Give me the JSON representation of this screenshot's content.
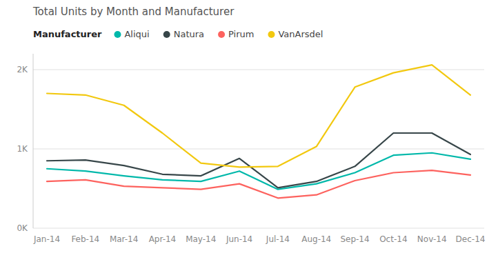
{
  "chart_data": {
    "type": "line",
    "title": "Total Units by Month and Manufacturer",
    "legend_title": "Manufacturer",
    "legend": "top",
    "categories": [
      "Jan-14",
      "Feb-14",
      "Mar-14",
      "Apr-14",
      "May-14",
      "Jun-14",
      "Jul-14",
      "Aug-14",
      "Sep-14",
      "Oct-14",
      "Nov-14",
      "Dec-14"
    ],
    "series": [
      {
        "name": "Aliqui",
        "color": "#01B8AA",
        "values": [
          750,
          720,
          660,
          610,
          590,
          720,
          490,
          560,
          700,
          920,
          950,
          870
        ]
      },
      {
        "name": "Natura",
        "color": "#374649",
        "values": [
          850,
          860,
          790,
          680,
          660,
          880,
          510,
          590,
          780,
          1200,
          1200,
          930
        ]
      },
      {
        "name": "Pirum",
        "color": "#FD625E",
        "values": [
          590,
          610,
          530,
          510,
          490,
          560,
          380,
          420,
          600,
          700,
          730,
          670
        ]
      },
      {
        "name": "VanArsdel",
        "color": "#F2C80F",
        "values": [
          1700,
          1680,
          1550,
          1200,
          820,
          770,
          780,
          1030,
          1780,
          1960,
          2060,
          1680
        ]
      }
    ],
    "ylim": [
      0,
      2200
    ],
    "yticks": [
      {
        "value": 0,
        "label": "0K"
      },
      {
        "value": 1000,
        "label": "1K"
      },
      {
        "value": 2000,
        "label": "2K"
      }
    ],
    "grid": true
  }
}
